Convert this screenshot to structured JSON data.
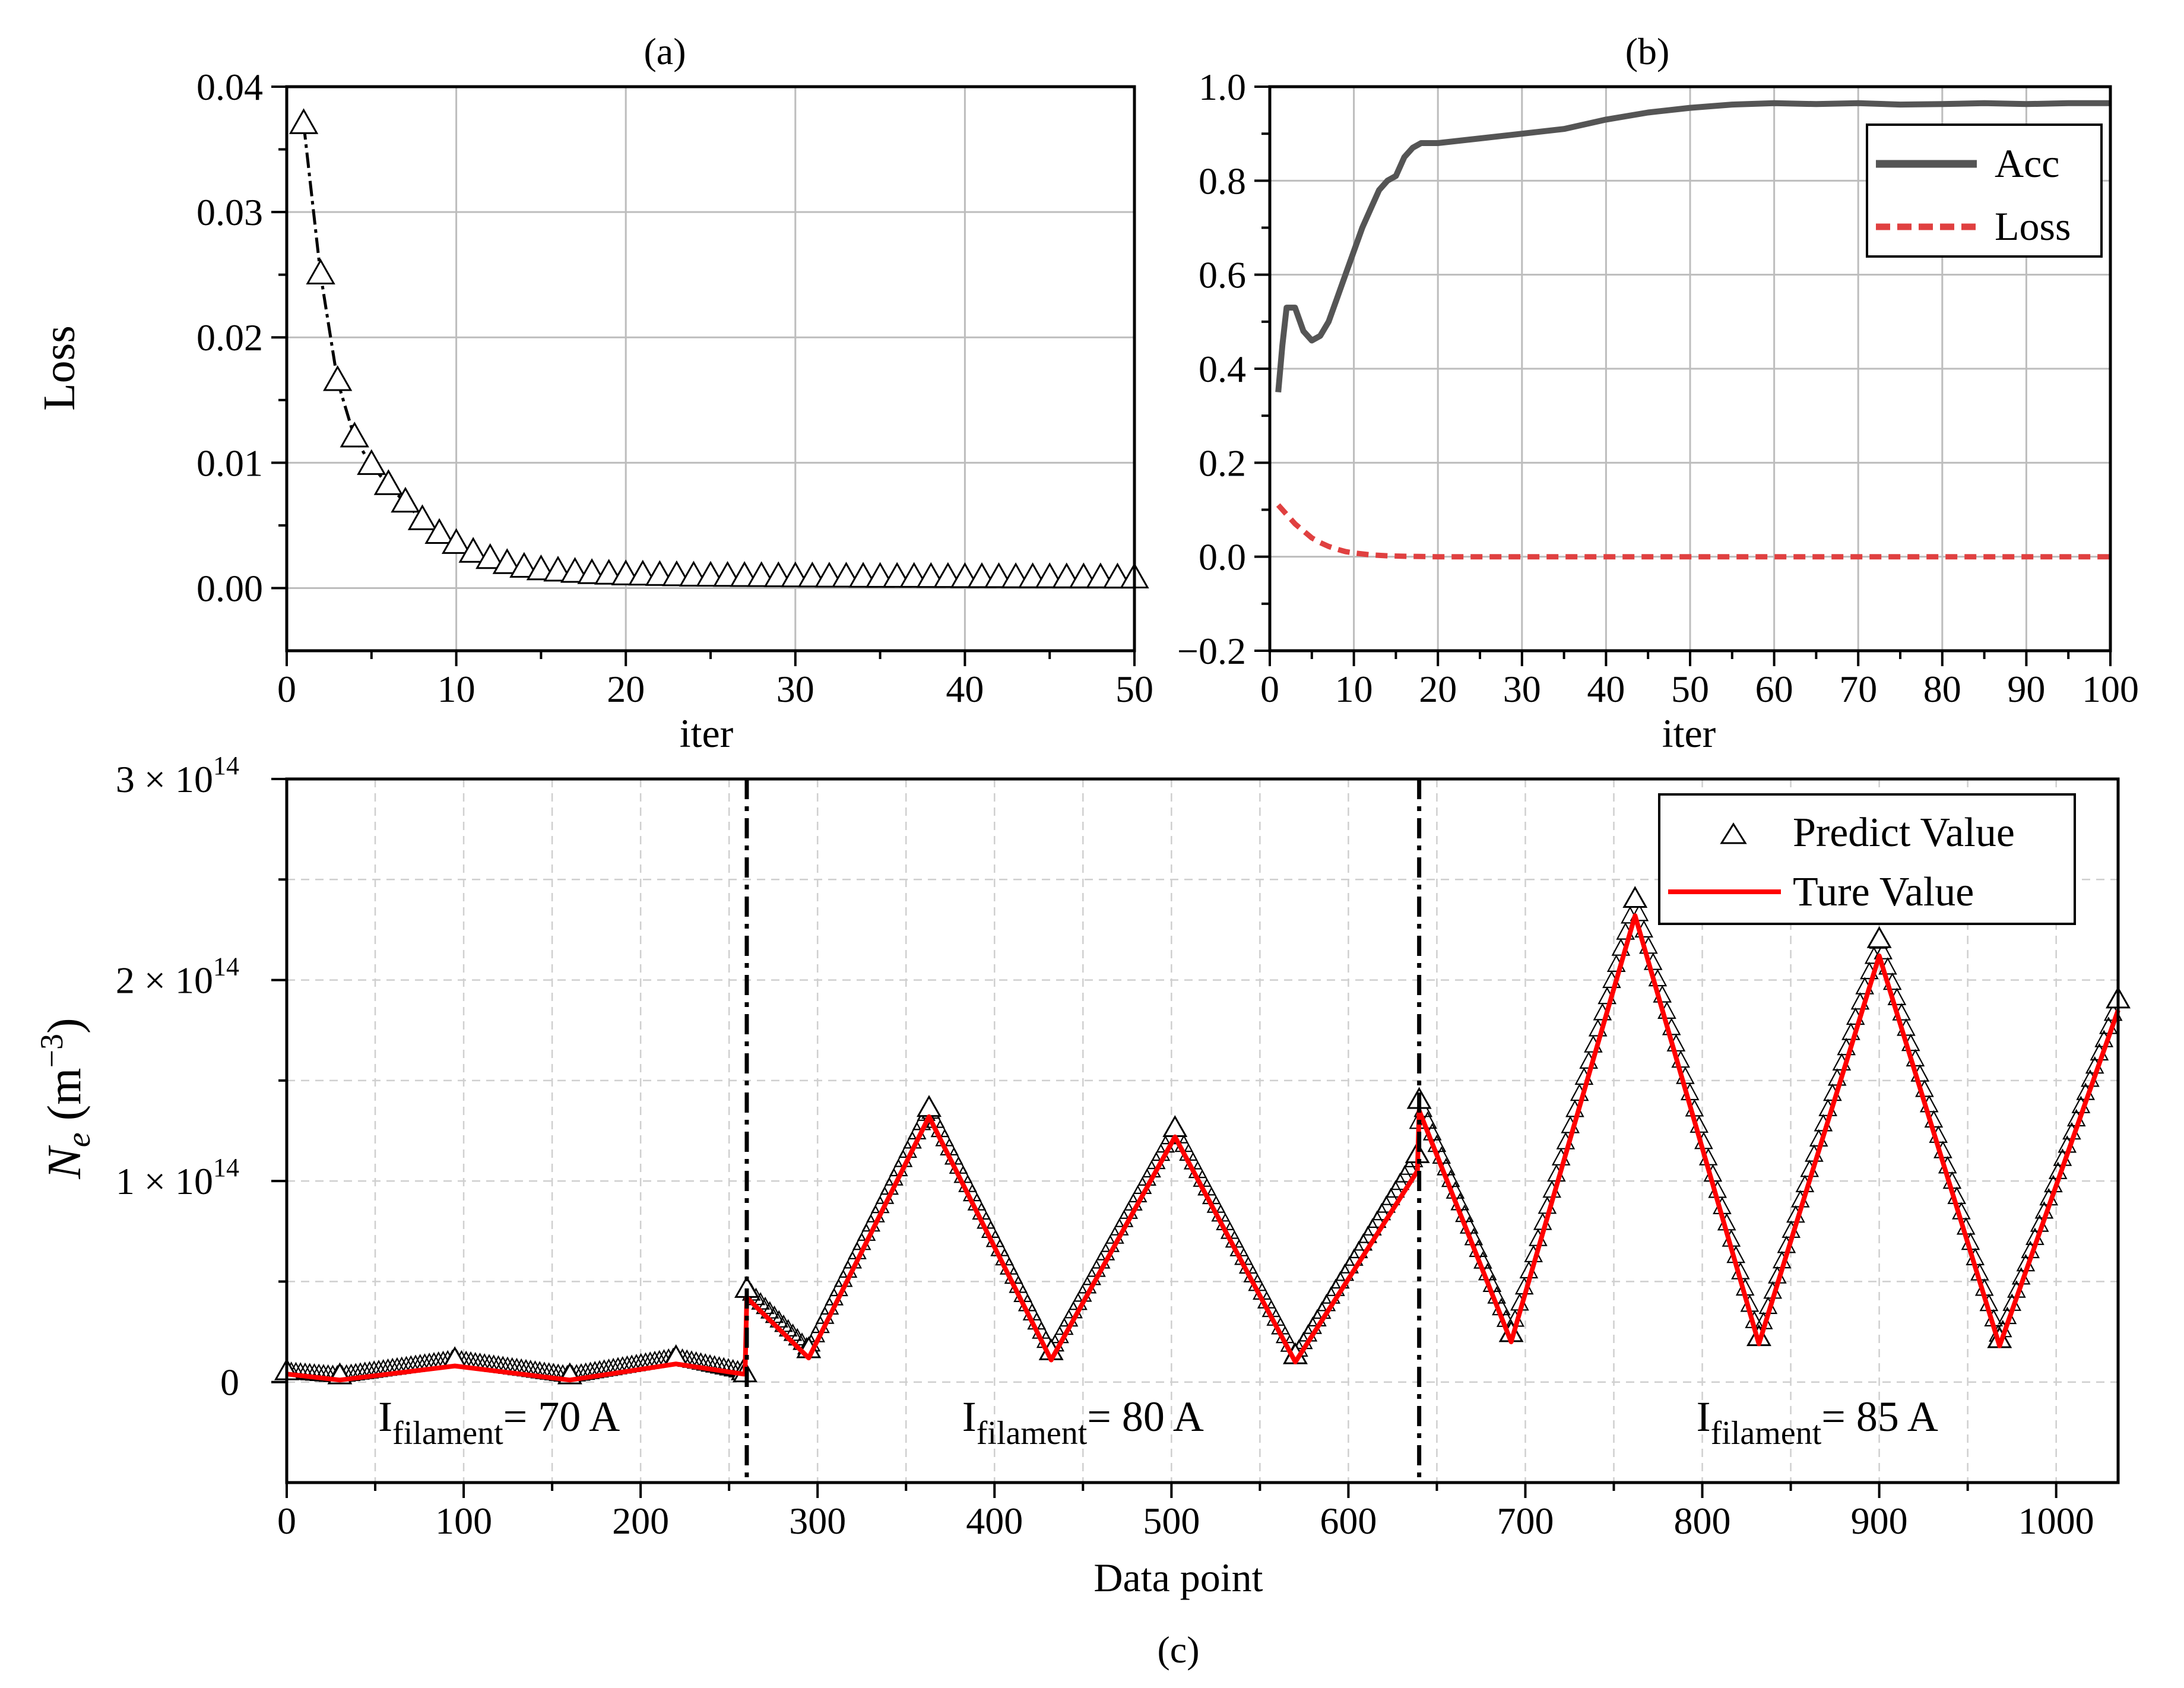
{
  "chart_data": [
    {
      "id": "a",
      "type": "line",
      "title": "(a)",
      "xlabel": "iter",
      "ylabel": "Loss",
      "xlim": [
        0,
        50
      ],
      "ylim": [
        -0.005,
        0.04
      ],
      "xticks": [
        0,
        10,
        20,
        30,
        40,
        50
      ],
      "yticks": [
        0.0,
        0.01,
        0.02,
        0.03,
        0.04
      ],
      "ytick_labels": [
        "0.00",
        "0.01",
        "0.02",
        "0.03",
        "0.04"
      ],
      "grid": true,
      "series": [
        {
          "name": "Loss",
          "marker": "triangle",
          "color": "#000000",
          "x": [
            1,
            2,
            3,
            4,
            5,
            6,
            7,
            8,
            9,
            10,
            11,
            12,
            13,
            14,
            15,
            16,
            17,
            18,
            19,
            20,
            21,
            22,
            23,
            24,
            25,
            26,
            27,
            28,
            29,
            30,
            31,
            32,
            33,
            34,
            35,
            36,
            37,
            38,
            39,
            40,
            41,
            42,
            43,
            44,
            45,
            46,
            47,
            48,
            49,
            50
          ],
          "values": [
            0.037,
            0.025,
            0.0165,
            0.012,
            0.0098,
            0.0082,
            0.0068,
            0.0054,
            0.0043,
            0.0035,
            0.0028,
            0.0023,
            0.0019,
            0.0016,
            0.0014,
            0.0013,
            0.0012,
            0.0011,
            0.00105,
            0.001,
            0.00098,
            0.00095,
            0.00093,
            0.0009,
            0.00089,
            0.00088,
            0.00087,
            0.00086,
            0.00085,
            0.00084,
            0.00083,
            0.00082,
            0.00082,
            0.00081,
            0.0008,
            0.0008,
            0.0008,
            0.00079,
            0.00079,
            0.00078,
            0.00078,
            0.00078,
            0.00077,
            0.00077,
            0.00077,
            0.00076,
            0.00076,
            0.00076,
            0.00075,
            0.00075
          ]
        }
      ]
    },
    {
      "id": "b",
      "type": "line",
      "title": "(b)",
      "xlabel": "iter",
      "ylabel": "",
      "xlim": [
        0,
        100
      ],
      "ylim": [
        -0.2,
        1.0
      ],
      "xticks": [
        0,
        10,
        20,
        30,
        40,
        50,
        60,
        70,
        80,
        90,
        100
      ],
      "yticks": [
        -0.2,
        0.0,
        0.2,
        0.4,
        0.6,
        0.8,
        1.0
      ],
      "ytick_labels": [
        "−0.2",
        "0.0",
        "0.2",
        "0.4",
        "0.6",
        "0.8",
        "1.0"
      ],
      "grid": true,
      "legend": "top-right",
      "series": [
        {
          "name": "Acc",
          "color": "#555555",
          "style": "solid",
          "x": [
            1,
            1.5,
            2,
            3,
            4,
            5,
            6,
            7,
            8,
            9,
            10,
            11,
            12,
            13,
            14,
            15,
            16,
            17,
            18,
            19,
            20,
            25,
            30,
            35,
            40,
            45,
            50,
            55,
            60,
            65,
            70,
            75,
            80,
            85,
            90,
            95,
            100
          ],
          "values": [
            0.35,
            0.45,
            0.53,
            0.53,
            0.48,
            0.46,
            0.47,
            0.5,
            0.55,
            0.6,
            0.65,
            0.7,
            0.74,
            0.78,
            0.8,
            0.81,
            0.85,
            0.87,
            0.88,
            0.88,
            0.88,
            0.89,
            0.9,
            0.91,
            0.93,
            0.945,
            0.955,
            0.962,
            0.965,
            0.963,
            0.965,
            0.962,
            0.963,
            0.965,
            0.963,
            0.965,
            0.965
          ]
        },
        {
          "name": "Loss",
          "color": "#e04040",
          "style": "dashed",
          "x": [
            1,
            2,
            3,
            4,
            5,
            6,
            7,
            8,
            9,
            10,
            12,
            14,
            16,
            18,
            20,
            30,
            40,
            50,
            60,
            70,
            80,
            90,
            100
          ],
          "values": [
            0.11,
            0.09,
            0.07,
            0.055,
            0.04,
            0.03,
            0.022,
            0.016,
            0.011,
            0.008,
            0.004,
            0.002,
            0.001,
            0.0005,
            0.0,
            0.0,
            0.0,
            0.0,
            0.0,
            0.0,
            0.0,
            0.0,
            0.0
          ]
        }
      ]
    },
    {
      "id": "c",
      "type": "line",
      "title": "(c)",
      "xlabel": "Data point",
      "ylabel_main": "N",
      "ylabel_sub": "e",
      "ylabel_unit": " (m",
      "ylabel_exp": "−3",
      "ylabel_close": ")",
      "xlim": [
        0,
        1035
      ],
      "ylim": [
        -50000000000000.0,
        300000000000000.0
      ],
      "xticks": [
        0,
        100,
        200,
        300,
        400,
        500,
        600,
        700,
        800,
        900,
        1000
      ],
      "yticks": [
        0,
        100000000000000.0,
        200000000000000.0,
        300000000000000.0
      ],
      "ytick_labels": [
        {
          "text": "0",
          "base": "",
          "exp": ""
        },
        {
          "text": "",
          "base": "1 × 10",
          "exp": "14"
        },
        {
          "text": "",
          "base": "2 × 10",
          "exp": "14"
        },
        {
          "text": "",
          "base": "3 × 10",
          "exp": "14"
        }
      ],
      "grid": true,
      "legend": "top-right",
      "dividers": [
        260,
        640
      ],
      "region_labels": [
        {
          "x": 120,
          "prefix": "I",
          "sub": "filament",
          "suffix": "= 70 A"
        },
        {
          "x": 450,
          "prefix": "I",
          "sub": "filament",
          "suffix": "= 80 A"
        },
        {
          "x": 865,
          "prefix": "I",
          "sub": "filament",
          "suffix": "= 85 A"
        }
      ],
      "series": [
        {
          "name": "Predict Value",
          "marker": "triangle",
          "color": "#000000",
          "x": [
            0,
            30,
            95,
            160,
            220,
            258,
            259,
            260,
            295,
            363,
            432,
            502,
            570,
            639,
            640,
            692,
            762,
            832,
            900,
            968,
            1035
          ],
          "values": [
            5000000000000.0,
            3000000000000.0,
            11000000000000.0,
            3000000000000.0,
            12000000000000.0,
            5000000000000.0,
            4000000000000.0,
            46000000000000.0,
            16000000000000.0,
            136000000000000.0,
            15000000000000.0,
            126000000000000.0,
            13000000000000.0,
            113000000000000.0,
            140000000000000.0,
            24000000000000.0,
            240000000000000.0,
            22000000000000.0,
            220000000000000.0,
            21000000000000.0,
            190000000000000.0
          ]
        },
        {
          "name": "Ture Value",
          "color": "#ff0000",
          "x": [
            0,
            30,
            95,
            160,
            220,
            258,
            259,
            260,
            295,
            363,
            432,
            502,
            570,
            639,
            640,
            692,
            762,
            832,
            900,
            968,
            1035
          ],
          "values": [
            4000000000000.0,
            1000000000000.0,
            8000000000000.0,
            1000000000000.0,
            9000000000000.0,
            4000000000000.0,
            4000000000000.0,
            42000000000000.0,
            12000000000000.0,
            132000000000000.0,
            11000000000000.0,
            122000000000000.0,
            10000000000000.0,
            105000000000000.0,
            135000000000000.0,
            20000000000000.0,
            232000000000000.0,
            19000000000000.0,
            212000000000000.0,
            18000000000000.0,
            185000000000000.0
          ]
        }
      ]
    }
  ]
}
